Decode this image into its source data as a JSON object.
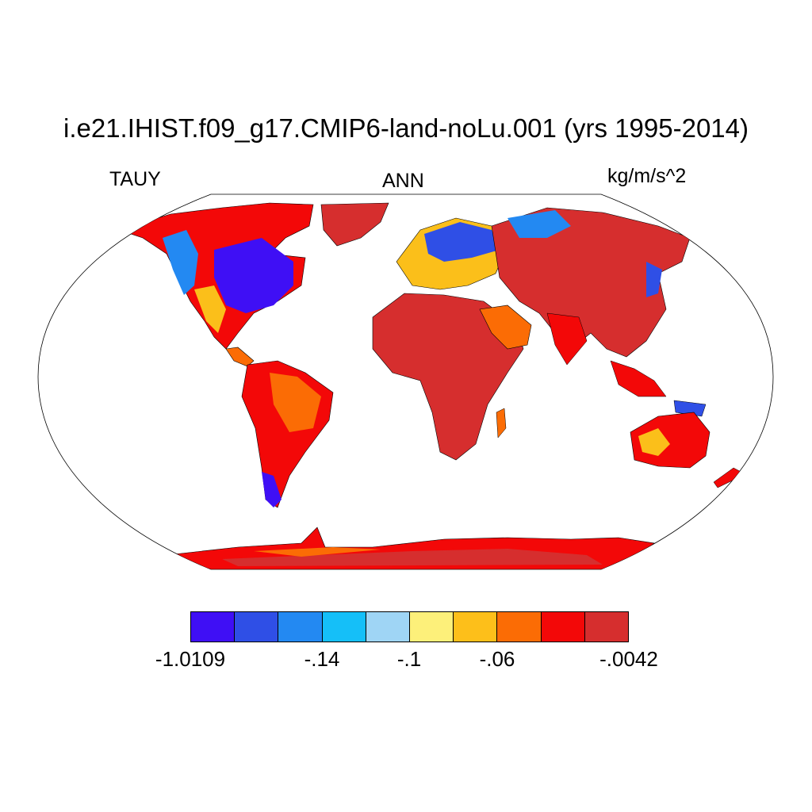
{
  "title": "i.e21.IHIST.f09_g17.CMIP6-land-noLu.001 (yrs 1995-2014)",
  "left_label": "TAUY",
  "center_label": "ANN",
  "right_label": "kg/m/s^2",
  "map": {
    "projection": "Robinson",
    "land_fill_dominant": "#d62e2e",
    "ocean_fill": "#ffffff",
    "coastline_color": "#000000"
  },
  "colorbar": {
    "colors": [
      "#3f0ff5",
      "#2f4fe6",
      "#2389f2",
      "#15bff8",
      "#9fd5f5",
      "#fdf07a",
      "#fdbf1a",
      "#fb6c05",
      "#f30808",
      "#d62e2e"
    ],
    "tick_labels": [
      "-1.0109",
      ".14",
      ".1",
      ".06",
      ".0042"
    ],
    "tick_labels_full": [
      "-1.0109",
      "-.14",
      "-.1",
      "-.06",
      "-.0042"
    ]
  }
}
